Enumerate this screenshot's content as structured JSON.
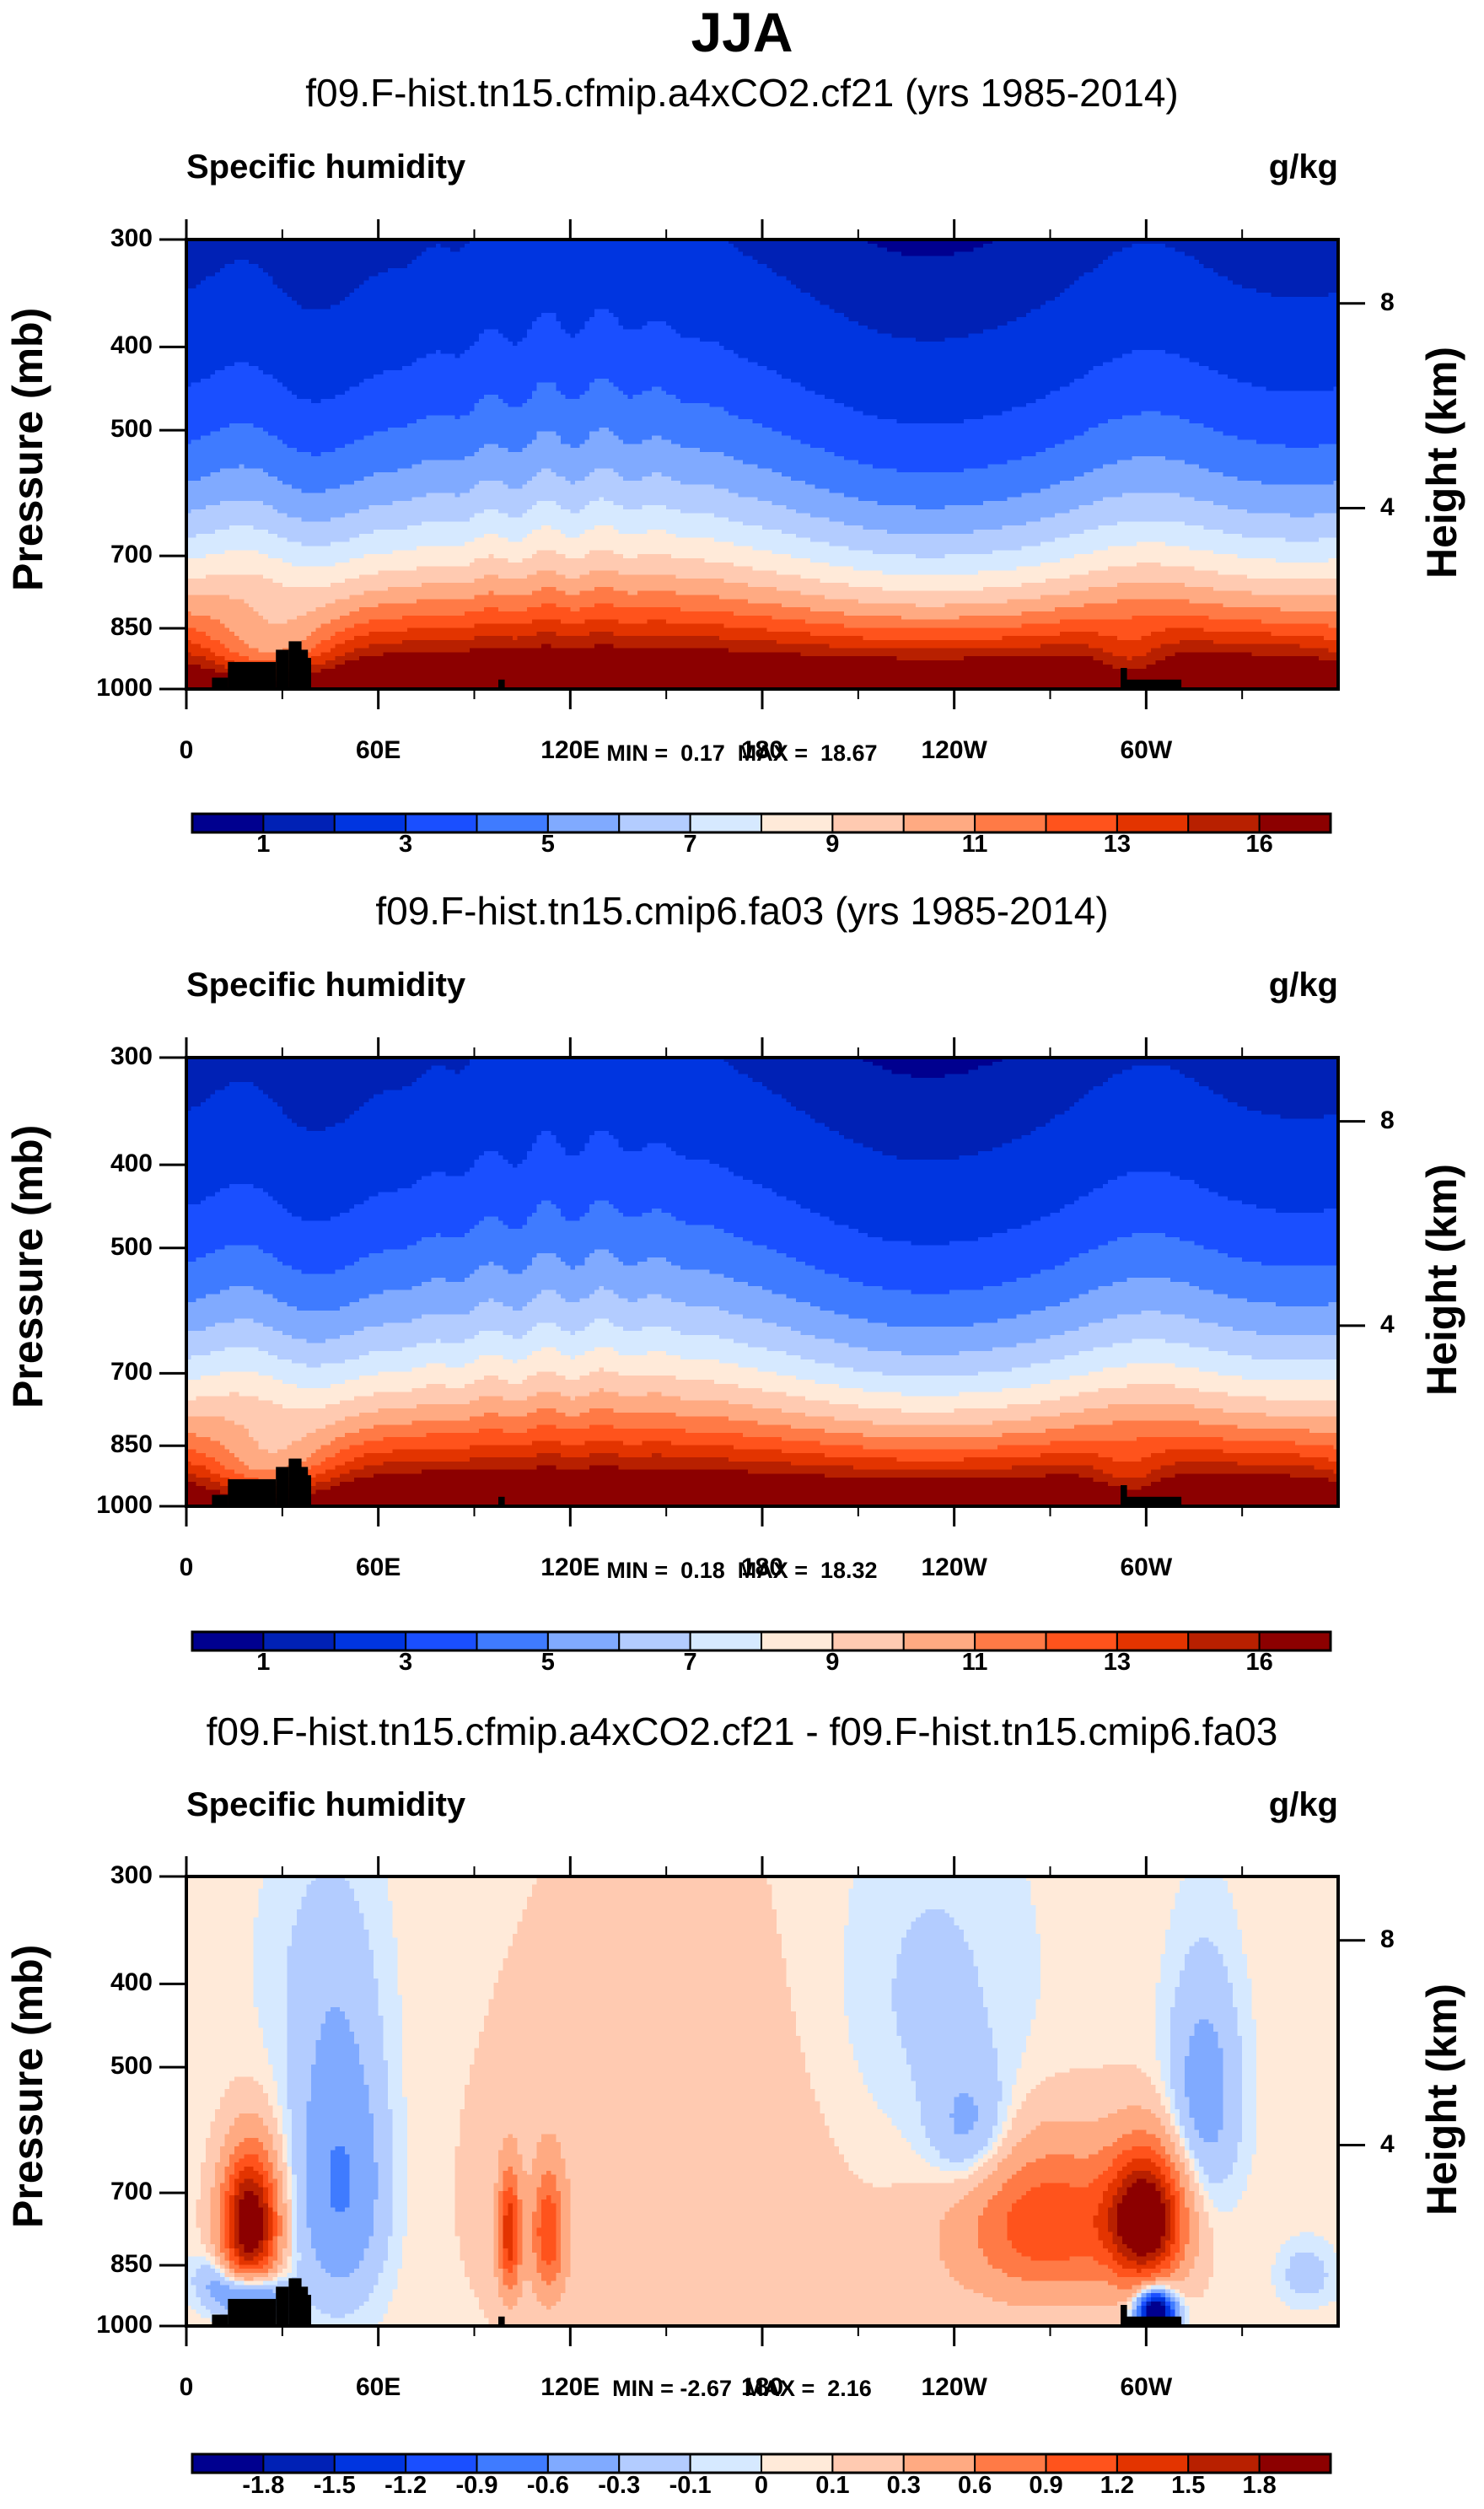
{
  "figure": {
    "title": "JJA"
  },
  "palette": [
    "#00008F",
    "#0021B5",
    "#0035E0",
    "#1A4FFF",
    "#3F7BFF",
    "#80AAFF",
    "#B3CCFF",
    "#D6E9FF",
    "#FFEAD9",
    "#FFCAB1",
    "#FFAA82",
    "#FF7A46",
    "#FF531C",
    "#E33400",
    "#B82000",
    "#8C0000"
  ],
  "terrain_color": "#000000",
  "chart_data": [
    {
      "type": "heatmap",
      "subtype": "filled-contour pressure-longitude cross-section",
      "title": "f09.F-hist.tn15.cfmip.a4xCO2.cf21 (yrs 1985-2014)",
      "left_string": "Specific humidity",
      "right_string": "g/kg",
      "ylabel": "Pressure (mb)",
      "ylabel_right": "Height (km)",
      "xlabel": "",
      "xlim": [
        0,
        360
      ],
      "ylim": [
        1000,
        300
      ],
      "x_ticks": [
        {
          "value": 0,
          "label": "0"
        },
        {
          "value": 60,
          "label": "60E"
        },
        {
          "value": 120,
          "label": "120E"
        },
        {
          "value": 180,
          "label": "180"
        },
        {
          "value": 240,
          "label": "120W"
        },
        {
          "value": 300,
          "label": "60W"
        }
      ],
      "x_minor_ticks": [
        30,
        90,
        150,
        210,
        270,
        330
      ],
      "y_ticks": [
        {
          "value": 300,
          "label": "300"
        },
        {
          "value": 400,
          "label": "400"
        },
        {
          "value": 500,
          "label": "500"
        },
        {
          "value": 700,
          "label": "700"
        },
        {
          "value": 850,
          "label": "850"
        },
        {
          "value": 1000,
          "label": "1000"
        }
      ],
      "y_right_ticks": [
        {
          "value_km": 8,
          "label": "8"
        },
        {
          "value_km": 4,
          "label": "4"
        }
      ],
      "stats": {
        "min_label": "MIN =",
        "min": "0.17",
        "max_label": "MAX =",
        "max": "18.67"
      },
      "stats_text": "MIN =  0.17  MAX =  18.67",
      "contour_levels": [
        0.5,
        1,
        2,
        3,
        4,
        5,
        6,
        7,
        8,
        9,
        10,
        11,
        12,
        13,
        14,
        16
      ],
      "colorbar_labels": [
        "1",
        "3",
        "5",
        "7",
        "9",
        "11",
        "13",
        "16"
      ],
      "colorbar_label_boundary_index": [
        1,
        3,
        5,
        7,
        9,
        11,
        13,
        15
      ],
      "value_range": [
        0.17,
        18.67
      ],
      "field_key": "control_like",
      "field_scale": 1.0
    },
    {
      "type": "heatmap",
      "subtype": "filled-contour pressure-longitude cross-section",
      "title": "f09.F-hist.tn15.cmip6.fa03 (yrs 1985-2014)",
      "left_string": "Specific humidity",
      "right_string": "g/kg",
      "ylabel": "Pressure (mb)",
      "ylabel_right": "Height (km)",
      "xlabel": "",
      "xlim": [
        0,
        360
      ],
      "ylim": [
        1000,
        300
      ],
      "x_ticks": [
        {
          "value": 0,
          "label": "0"
        },
        {
          "value": 60,
          "label": "60E"
        },
        {
          "value": 120,
          "label": "120E"
        },
        {
          "value": 180,
          "label": "180"
        },
        {
          "value": 240,
          "label": "120W"
        },
        {
          "value": 300,
          "label": "60W"
        }
      ],
      "x_minor_ticks": [
        30,
        90,
        150,
        210,
        270,
        330
      ],
      "y_ticks": [
        {
          "value": 300,
          "label": "300"
        },
        {
          "value": 400,
          "label": "400"
        },
        {
          "value": 500,
          "label": "500"
        },
        {
          "value": 700,
          "label": "700"
        },
        {
          "value": 850,
          "label": "850"
        },
        {
          "value": 1000,
          "label": "1000"
        }
      ],
      "y_right_ticks": [
        {
          "value_km": 8,
          "label": "8"
        },
        {
          "value_km": 4,
          "label": "4"
        }
      ],
      "stats": {
        "min_label": "MIN =",
        "min": "0.18",
        "max_label": "MAX =",
        "max": "18.32"
      },
      "stats_text": "MIN =  0.18  MAX =  18.32",
      "contour_levels": [
        0.5,
        1,
        2,
        3,
        4,
        5,
        6,
        7,
        8,
        9,
        10,
        11,
        12,
        13,
        14,
        16
      ],
      "colorbar_labels": [
        "1",
        "3",
        "5",
        "7",
        "9",
        "11",
        "13",
        "16"
      ],
      "colorbar_label_boundary_index": [
        1,
        3,
        5,
        7,
        9,
        11,
        13,
        15
      ],
      "value_range": [
        0.18,
        18.32
      ],
      "field_key": "control_like",
      "field_scale": 0.98
    },
    {
      "type": "heatmap",
      "subtype": "filled-contour pressure-longitude cross-section (difference)",
      "title": "f09.F-hist.tn15.cfmip.a4xCO2.cf21 - f09.F-hist.tn15.cmip6.fa03",
      "left_string": "Specific humidity",
      "right_string": "g/kg",
      "ylabel": "Pressure (mb)",
      "ylabel_right": "Height (km)",
      "xlabel": "",
      "xlim": [
        0,
        360
      ],
      "ylim": [
        1000,
        300
      ],
      "x_ticks": [
        {
          "value": 0,
          "label": "0"
        },
        {
          "value": 60,
          "label": "60E"
        },
        {
          "value": 120,
          "label": "120E"
        },
        {
          "value": 180,
          "label": "180"
        },
        {
          "value": 240,
          "label": "120W"
        },
        {
          "value": 300,
          "label": "60W"
        }
      ],
      "x_minor_ticks": [
        30,
        90,
        150,
        210,
        270,
        330
      ],
      "y_ticks": [
        {
          "value": 300,
          "label": "300"
        },
        {
          "value": 400,
          "label": "400"
        },
        {
          "value": 500,
          "label": "500"
        },
        {
          "value": 700,
          "label": "700"
        },
        {
          "value": 850,
          "label": "850"
        },
        {
          "value": 1000,
          "label": "1000"
        }
      ],
      "y_right_ticks": [
        {
          "value_km": 8,
          "label": "8"
        },
        {
          "value_km": 4,
          "label": "4"
        }
      ],
      "stats": {
        "min_label": "MIN =",
        "min": "-2.67",
        "max_label": "MAX =",
        "max": "2.16"
      },
      "stats_text": "MIN = -2.67  MAX =  2.16",
      "contour_levels": [
        -1.8,
        -1.5,
        -1.2,
        -0.9,
        -0.6,
        -0.3,
        -0.1,
        0,
        0.1,
        0.3,
        0.6,
        0.9,
        1.2,
        1.5,
        1.8
      ],
      "colorbar_labels": [
        "-1.8",
        "-1.5",
        "-1.2",
        "-0.9",
        "-0.6",
        "-0.3",
        "-0.1",
        "0",
        "0.1",
        "0.3",
        "0.6",
        "0.9",
        "1.2",
        "1.5",
        "1.8"
      ],
      "colorbar_label_boundary_index": [
        1,
        2,
        3,
        4,
        5,
        6,
        7,
        8,
        9,
        10,
        11,
        12,
        13,
        14,
        15
      ],
      "value_range": [
        -2.67,
        2.16
      ],
      "field_key": "difference",
      "field_scale": 1.0,
      "features": [
        {
          "name": "positive max near 20E ~750mb",
          "lon": 20,
          "p": 760,
          "value": 2.1
        },
        {
          "name": "positive max near 60W ~750mb",
          "lon": 300,
          "p": 750,
          "value": 2.0
        },
        {
          "name": "positive bands near 100E-115E",
          "lon": 108,
          "p": 780,
          "value": 1.3
        },
        {
          "name": "negative near surface 60W",
          "lon": 300,
          "p": 960,
          "value": -2.5
        },
        {
          "name": "negative near surface 20E",
          "lon": 20,
          "p": 920,
          "value": -1.2
        }
      ]
    }
  ]
}
